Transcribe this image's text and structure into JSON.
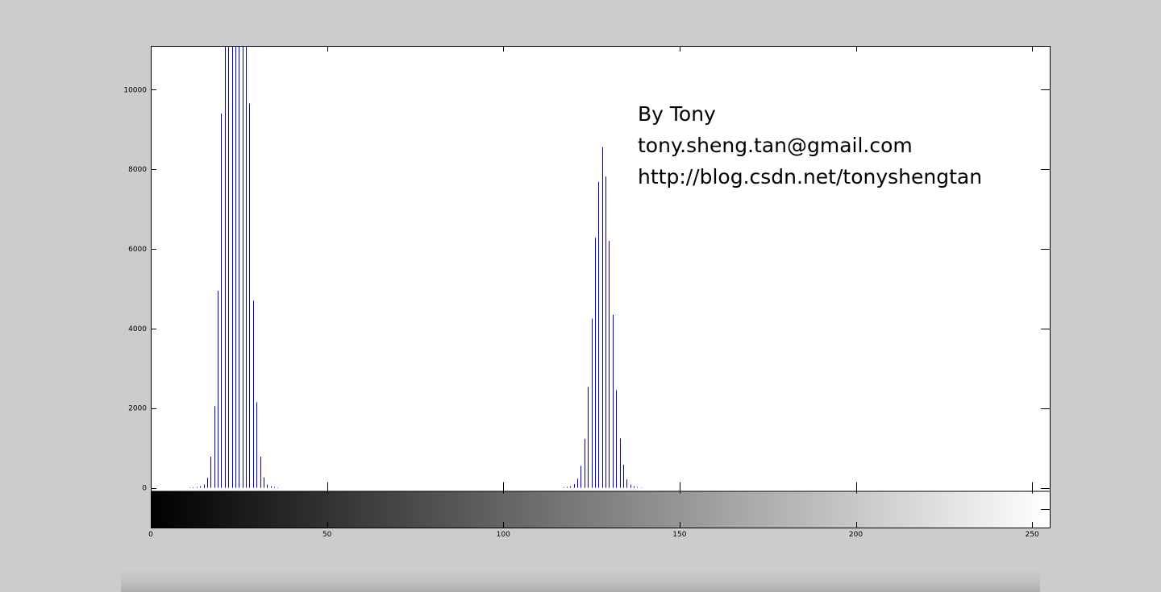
{
  "chart_data": {
    "type": "bar",
    "style": "stem",
    "color": "#0000cc",
    "colorbar": "grayscale",
    "xlim": [
      0,
      255
    ],
    "ylim": [
      -1000,
      11100
    ],
    "xticks": [
      0,
      50,
      100,
      150,
      200,
      250
    ],
    "yticks": [
      0,
      2000,
      4000,
      6000,
      8000,
      10000
    ],
    "xtick_labels": [
      "0",
      "50",
      "100",
      "150",
      "200",
      "250"
    ],
    "ytick_labels": [
      "0",
      "2000",
      "4000",
      "6000",
      "8000",
      "10000"
    ],
    "grid": false,
    "annotations": [
      "By Tony",
      "tony.sheng.tan@gmail.com",
      "http://blog.csdn.net/tonyshengtan"
    ],
    "series": [
      {
        "x": [
          11,
          12,
          13,
          14,
          15,
          16,
          17,
          18,
          19,
          20,
          21,
          22,
          23,
          24,
          25,
          26,
          27,
          28,
          29,
          30,
          31,
          32,
          33,
          34,
          35,
          36,
          117,
          118,
          119,
          120,
          121,
          122,
          123,
          124,
          125,
          126,
          127,
          128,
          129,
          130,
          131,
          132,
          133,
          134,
          135,
          136,
          137,
          138,
          139
        ],
        "values": [
          10,
          15,
          20,
          40,
          80,
          250,
          780,
          2050,
          4950,
          9400,
          11100,
          11100,
          11100,
          11100,
          11100,
          11100,
          11100,
          9650,
          4700,
          2150,
          780,
          260,
          80,
          40,
          20,
          10,
          15,
          25,
          40,
          90,
          230,
          550,
          1230,
          2530,
          4250,
          6280,
          7680,
          8560,
          7820,
          6200,
          4350,
          2450,
          1240,
          580,
          210,
          80,
          40,
          20,
          10
        ]
      }
    ]
  }
}
